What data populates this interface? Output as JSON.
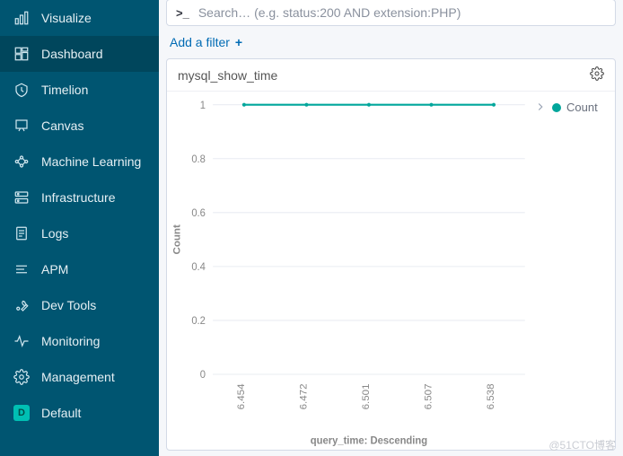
{
  "sidebar": {
    "items": [
      {
        "label": "Visualize",
        "icon": "visualize",
        "active": false
      },
      {
        "label": "Dashboard",
        "icon": "dashboard",
        "active": true
      },
      {
        "label": "Timelion",
        "icon": "timelion",
        "active": false
      },
      {
        "label": "Canvas",
        "icon": "canvas",
        "active": false
      },
      {
        "label": "Machine Learning",
        "icon": "ml",
        "active": false
      },
      {
        "label": "Infrastructure",
        "icon": "infra",
        "active": false
      },
      {
        "label": "Logs",
        "icon": "logs",
        "active": false
      },
      {
        "label": "APM",
        "icon": "apm",
        "active": false
      },
      {
        "label": "Dev Tools",
        "icon": "devtools",
        "active": false
      },
      {
        "label": "Monitoring",
        "icon": "monitoring",
        "active": false
      },
      {
        "label": "Management",
        "icon": "management",
        "active": false
      },
      {
        "label": "Default",
        "icon": "default-badge",
        "active": false,
        "badge": "D"
      }
    ]
  },
  "search": {
    "prompt": ">_",
    "placeholder": "Search… (e.g. status:200 AND extension:PHP)",
    "value": ""
  },
  "filter": {
    "label": "Add a filter",
    "plus": "+"
  },
  "panel": {
    "title": "mysql_show_time",
    "legend_label": "Count",
    "legend_color": "#00a69b",
    "chart": {
      "type": "line",
      "x_categories": [
        "6.454",
        "6.472",
        "6.501",
        "6.507",
        "6.538"
      ],
      "y_values": [
        1,
        1,
        1,
        1,
        1
      ],
      "line_color": "#00a69b",
      "marker_color": "#00a69b",
      "marker_radius": 2,
      "line_width": 2,
      "ylim": [
        0,
        1
      ],
      "ytick_step": 0.2,
      "x_axis_title": "query_time: Descending",
      "y_axis_title": "Count",
      "background_color": "#ffffff",
      "grid_color": "#e9ecf2",
      "axis_text_color": "#888888",
      "tick_label_fontsize": 11,
      "axis_title_fontsize": 11,
      "x_labels_rotation": -90
    }
  },
  "watermark": "@51CTO博客"
}
